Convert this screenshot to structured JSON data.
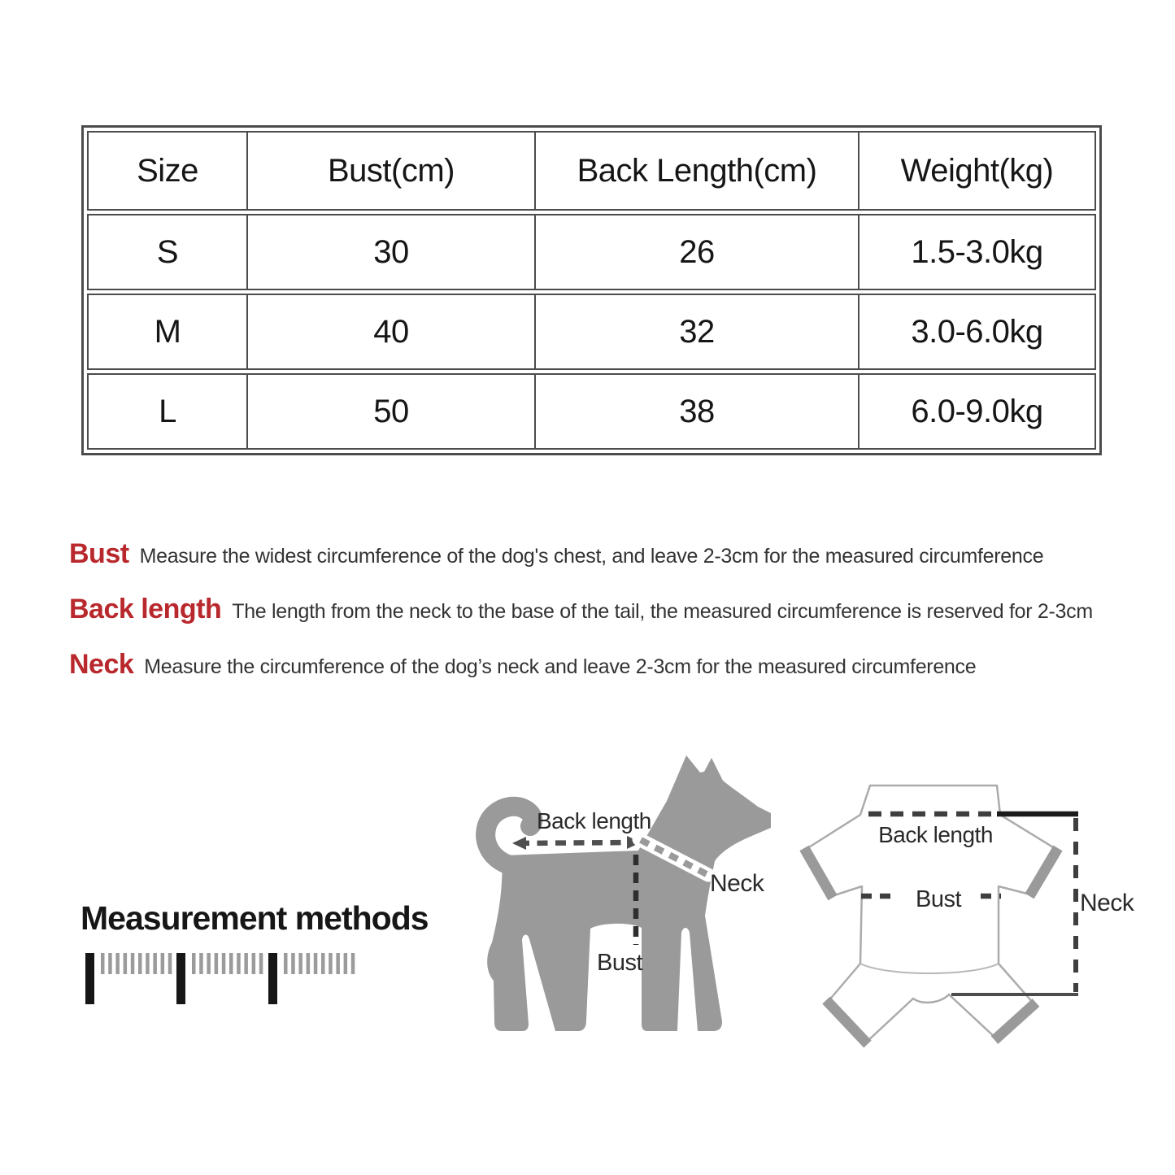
{
  "size_table": {
    "headers": [
      "Size",
      "Bust(cm)",
      "Back Length(cm)",
      "Weight(kg)"
    ],
    "rows": [
      {
        "size": "S",
        "bust": "30",
        "back_length": "26",
        "weight": "1.5-3.0kg"
      },
      {
        "size": "M",
        "bust": "40",
        "back_length": "32",
        "weight": "3.0-6.0kg"
      },
      {
        "size": "L",
        "bust": "50",
        "back_length": "38",
        "weight": "6.0-9.0kg"
      }
    ]
  },
  "definitions": [
    {
      "term": "Bust",
      "description": "Measure the widest circumference of the dog's chest, and leave 2-3cm for the measured circumference"
    },
    {
      "term": "Back length",
      "description": "The length from the neck to the base of the tail, the measured circumference is reserved for 2-3cm"
    },
    {
      "term": "Neck",
      "description": "Measure the circumference of the dog’s neck and leave 2-3cm for the measured circumference"
    }
  ],
  "measurement_section": {
    "title": "Measurement methods"
  },
  "dog_diagram": {
    "back_length_label": "Back length",
    "neck_label": "Neck",
    "bust_label": "Bust"
  },
  "garment_diagram": {
    "back_length_label": "Back length",
    "bust_label": "Bust",
    "neck_label": "Neck"
  },
  "colors": {
    "term_red": "#b8282c",
    "text_dark": "#333333",
    "silhouette_gray": "#9a9a9a"
  }
}
